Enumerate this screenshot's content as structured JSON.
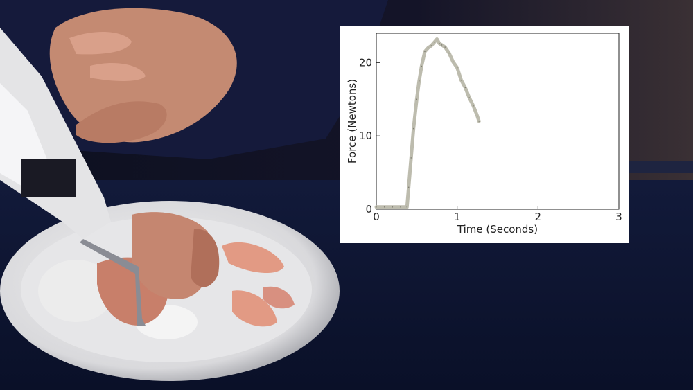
{
  "scene": {
    "subject_icon": "robot-arm-cutting-food-on-plate"
  },
  "chart_data": {
    "type": "line",
    "xlabel": "Time (Seconds)",
    "ylabel": "Force (Newtons)",
    "xlim": [
      0,
      3
    ],
    "ylim": [
      0,
      24
    ],
    "xticks": [
      "0",
      "1",
      "2",
      "3"
    ],
    "yticks": [
      "0",
      "10",
      "20"
    ],
    "grid": false,
    "series": [
      {
        "color": "#bdbcae",
        "x": [
          0,
          0.1,
          0.2,
          0.3,
          0.38,
          0.4,
          0.43,
          0.46,
          0.5,
          0.53,
          0.56,
          0.6,
          0.64,
          0.68,
          0.72,
          0.75,
          0.78,
          0.81,
          0.85,
          0.9,
          0.95,
          1.0,
          1.05,
          1.1,
          1.15,
          1.2,
          1.25,
          1.27
        ],
        "y": [
          0.3,
          0.3,
          0.3,
          0.3,
          0.3,
          3,
          7,
          11,
          15,
          17.5,
          19.5,
          21.5,
          22,
          22.3,
          22.8,
          23.2,
          22.6,
          22.4,
          22.1,
          21.3,
          20.1,
          19.3,
          17.6,
          16.6,
          15.2,
          14.1,
          12.7,
          12
        ]
      }
    ]
  }
}
